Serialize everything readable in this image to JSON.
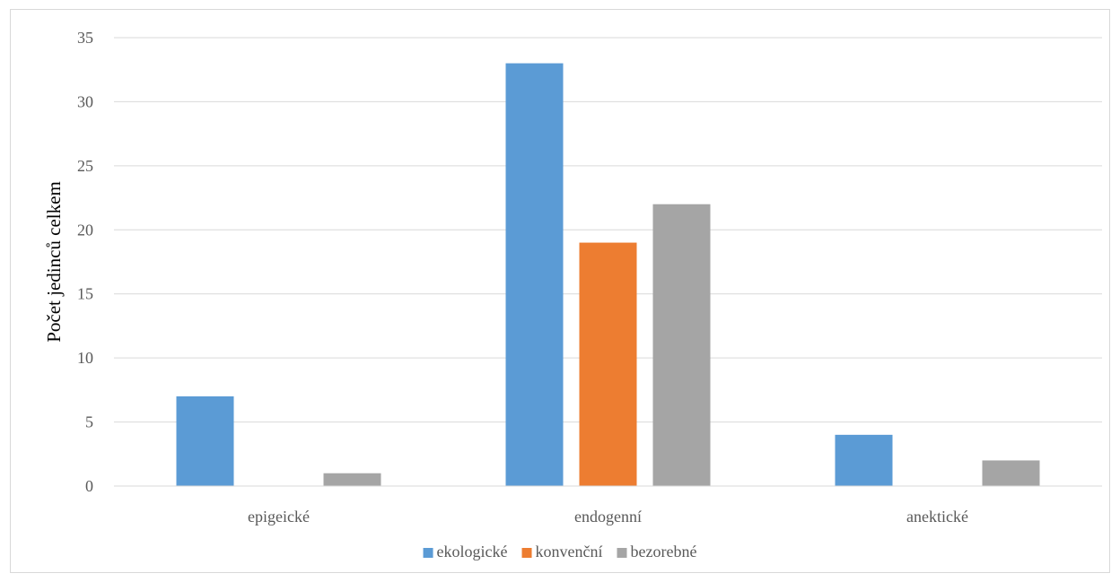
{
  "chart_data": {
    "type": "bar",
    "title": "",
    "xlabel": "",
    "ylabel": "Počet jedinců celkem",
    "categories": [
      "epigeické",
      "endogenní",
      "anektické"
    ],
    "series": [
      {
        "name": "ekologické",
        "values": [
          7,
          33,
          4
        ],
        "color": "#5b9bd5"
      },
      {
        "name": "konvenční",
        "values": [
          0,
          19,
          0
        ],
        "color": "#ed7d31"
      },
      {
        "name": "bezorebné",
        "values": [
          1,
          22,
          2
        ],
        "color": "#a5a5a5"
      }
    ],
    "ylim": [
      0,
      35
    ],
    "yticks": [
      0,
      5,
      10,
      15,
      20,
      25,
      30,
      35
    ],
    "grid": true,
    "legend_position": "bottom"
  }
}
